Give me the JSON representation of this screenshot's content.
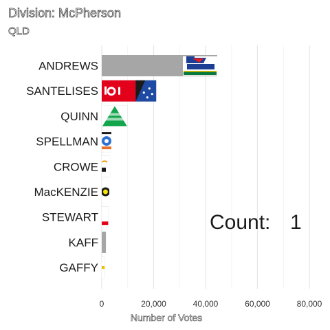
{
  "page": {
    "title": "Division: McPherson",
    "subtitle": "QLD",
    "count_label": "Count:",
    "count_value": "1"
  },
  "chart_data": {
    "type": "bar",
    "orientation": "horizontal",
    "categories": [
      "ANDREWS",
      "SANTELISES",
      "QUINN",
      "SPELLMAN",
      "CROWE",
      "MacKENZIE",
      "STEWART",
      "KAFF",
      "GAFFY"
    ],
    "values": [
      44500,
      21000,
      10000,
      3700,
      3200,
      2900,
      2500,
      1600,
      1100
    ],
    "party_logos": [
      "liberal-nationals-logo",
      "labor-logo",
      "greens-logo",
      "one-nation-logo",
      "party-logo",
      "party-logo",
      "party-logo",
      "none",
      "party-logo"
    ],
    "xlabel": "Number of Votes",
    "ylabel": "",
    "xlim": [
      0,
      85000
    ],
    "xticks": [
      0,
      20000,
      40000,
      60000,
      80000
    ],
    "xtick_labels": [
      "0",
      "20,000",
      "40,000",
      "60,000",
      "80,000"
    ],
    "grid": true,
    "colors": {
      "bar": "#a6a6a6",
      "grid": "#e6e6e6"
    }
  }
}
